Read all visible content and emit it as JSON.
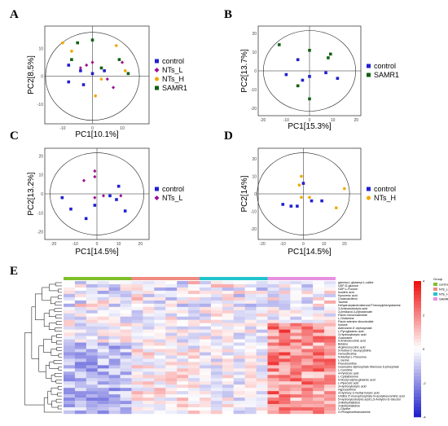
{
  "panel_labels": [
    "A",
    "B",
    "C",
    "D",
    "E"
  ],
  "chart_data": [
    {
      "type": "scatter",
      "panel": "A",
      "xlabel": "PC1[10.1%]",
      "ylabel": "PC2[8.5%]",
      "xlim": [
        -16,
        19
      ],
      "ylim": [
        -17,
        18
      ],
      "x_ticks": [
        "-10",
        "0",
        "10"
      ],
      "y_ticks": [
        "10",
        "0",
        "-10"
      ],
      "series": [
        {
          "name": "control",
          "color": "#2020d0",
          "marker": "square",
          "points": [
            [
              -8,
              4
            ],
            [
              -8,
              -2
            ],
            [
              -4,
              2
            ],
            [
              -3,
              -3
            ],
            [
              0,
              1
            ],
            [
              4,
              2
            ]
          ]
        },
        {
          "name": "NTs_L",
          "color": "#9a1090",
          "marker": "diamond",
          "points": [
            [
              -4,
              3
            ],
            [
              -2,
              4
            ],
            [
              0,
              5
            ],
            [
              5,
              -1
            ],
            [
              7,
              -4
            ],
            [
              10,
              5
            ]
          ]
        },
        {
          "name": "NTs_H",
          "color": "#f0a800",
          "marker": "circle",
          "points": [
            [
              -10,
              12
            ],
            [
              -7,
              9
            ],
            [
              1,
              -7
            ],
            [
              3,
              -1
            ],
            [
              8,
              11
            ],
            [
              11,
              2
            ]
          ]
        },
        {
          "name": "SAMR1",
          "color": "#106010",
          "marker": "square",
          "points": [
            [
              -7,
              6
            ],
            [
              -5,
              12
            ],
            [
              0,
              13
            ],
            [
              3,
              3
            ],
            [
              9,
              6
            ],
            [
              12,
              1
            ]
          ]
        }
      ]
    },
    {
      "type": "scatter",
      "panel": "B",
      "xlabel": "PC1[15.3%]",
      "ylabel": "PC2[13.7%]",
      "xlim": [
        -22,
        22
      ],
      "ylim": [
        -24,
        24
      ],
      "x_ticks": [
        "-20",
        "-10",
        "0",
        "10",
        "20"
      ],
      "y_ticks": [
        "20",
        "10",
        "0",
        "-10",
        "-20"
      ],
      "series": [
        {
          "name": "control",
          "color": "#2020d0",
          "marker": "square",
          "points": [
            [
              -10,
              -2
            ],
            [
              -5,
              6
            ],
            [
              -3,
              -5
            ],
            [
              0,
              -3
            ],
            [
              7,
              -1
            ],
            [
              12,
              -4
            ]
          ]
        },
        {
          "name": "SAMR1",
          "color": "#106010",
          "marker": "square",
          "points": [
            [
              -13,
              14
            ],
            [
              -5,
              -8
            ],
            [
              0,
              11
            ],
            [
              8,
              7
            ],
            [
              9,
              9
            ],
            [
              0,
              -15
            ]
          ]
        }
      ]
    },
    {
      "type": "scatter",
      "panel": "C",
      "xlabel": "PC1[14.5%]",
      "ylabel": "PC2[13.2%]",
      "xlim": [
        -24,
        24
      ],
      "ylim": [
        -24,
        24
      ],
      "x_ticks": [
        "-20",
        "-10",
        "0",
        "10",
        "20"
      ],
      "y_ticks": [
        "20",
        "10",
        "0",
        "-10",
        "-20"
      ],
      "series": [
        {
          "name": "control",
          "color": "#2020d0",
          "marker": "square",
          "points": [
            [
              -16,
              -2
            ],
            [
              -12,
              -8
            ],
            [
              -5,
              -13
            ],
            [
              -1,
              -6
            ],
            [
              6,
              -1
            ],
            [
              9,
              -3
            ],
            [
              10,
              4
            ],
            [
              13,
              -9
            ]
          ]
        },
        {
          "name": "NTs_L",
          "color": "#9a1090",
          "marker": "diamond",
          "points": [
            [
              -6,
              7
            ],
            [
              -1,
              9
            ],
            [
              -1,
              12
            ],
            [
              -1,
              -2
            ],
            [
              3,
              -1
            ],
            [
              11,
              -1
            ]
          ]
        }
      ]
    },
    {
      "type": "scatter",
      "panel": "D",
      "xlabel": "PC1[14.5%]",
      "ylabel": "PC2[14%]",
      "xlim": [
        -22,
        28
      ],
      "ylim": [
        -26,
        26
      ],
      "x_ticks": [
        "-20",
        "-10",
        "0",
        "10",
        "20"
      ],
      "y_ticks": [
        "20",
        "10",
        "0",
        "-10",
        "-20"
      ],
      "series": [
        {
          "name": "control",
          "color": "#2020d0",
          "marker": "square",
          "points": [
            [
              -10,
              -6
            ],
            [
              -6,
              -7
            ],
            [
              -3,
              -7
            ],
            [
              0,
              6
            ],
            [
              4,
              -4
            ],
            [
              9,
              -4
            ]
          ]
        },
        {
          "name": "NTs_H",
          "color": "#f0a800",
          "marker": "circle",
          "points": [
            [
              -1,
              10
            ],
            [
              -1,
              -2
            ],
            [
              -2,
              5
            ],
            [
              3,
              -2
            ],
            [
              16,
              -8
            ],
            [
              20,
              3
            ]
          ]
        }
      ]
    },
    {
      "type": "heatmap",
      "panel": "E",
      "group_title": "Group",
      "groups": [
        {
          "name": "control",
          "color": "#7fbf2a"
        },
        {
          "name": "NTs_L",
          "color": "#f08a80"
        },
        {
          "name": "NTs_H",
          "color": "#20c4cc"
        },
        {
          "name": "SAMR1",
          "color": "#e890e0"
        }
      ],
      "samples_per_group": 6,
      "color_scale": {
        "min": -4,
        "max": 4,
        "ticks": [
          "4",
          "2",
          "0",
          "-2",
          "-4"
        ],
        "low": "#2222cc",
        "mid": "#ffffff",
        "high": "#ee1111"
      },
      "rows": [
        "gamma-L-glutamyl-L-valine",
        "UDP-D-glucose",
        "GDP-L-Fucose",
        "Isocitric acid",
        "Kynurenic acid",
        "Cholecalciferol",
        "Taurine",
        "Dehydroepiandrosterone/Threonylphenylalanine",
        "3-Aminoisobutyric acid",
        "3-(Imidazol-4-yl)butanoate",
        "Flavin mononucleotide",
        "L-Glutamine",
        "Flavin adenine dinucleotide",
        "Inosine",
        "Adenosine-5'-diphosphate",
        "L-Pyroglutamic acid",
        "3-Hydroxybutyric acid",
        "Guanosine",
        "5-Aminolevulinic acid",
        "Betaine",
        "Argininosuccinic acid",
        "5-methyl-2'-deoxycytidine",
        "Homocitrulline",
        "N-Methyl-L-Threonine",
        "L-Serine",
        "Pseudouridine",
        "Guanosine diphosphate Mannose 6-phosphate",
        "L-Carnitine",
        "4-Pyridoxic acid",
        "L-Cystathionine",
        "N-Acetyl-alpha-glutamic acid",
        "L-Pipecolic acid",
        "3-Hydroxybutyric acid",
        "Hypoxanthine",
        "3-Hydroxy-3-methyl butyric acid",
        "Uridine 5'-monophosphate-N-acetylneuraminic acid",
        "5-Hydroxyisobutyric acid/1,5-Anhydro-D-Glucitol",
        "3-Methylhistidine",
        "3-Methylhistidine",
        "L-Glycine",
        "O-Phosphoethanolamine"
      ]
    }
  ]
}
